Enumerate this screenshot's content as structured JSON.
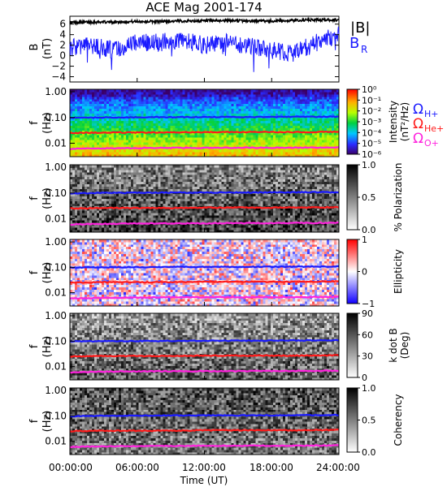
{
  "title": "ACE Mag 2001-174",
  "colors": {
    "axis": "#000000",
    "total_b": "#000000",
    "br": "#1a1aff",
    "he_plus": "#1a1aff",
    "he_plus_plus": "#ff1a1a",
    "o_plus": "#ff22dd"
  },
  "legend": {
    "total_b": "|B|",
    "br": "B",
    "br_sub": "R",
    "omega": "Ω",
    "he_plus": "H+",
    "he_plus_plus": "He+",
    "o_plus": "O+"
  },
  "xaxis": {
    "label": "Time (UT)",
    "ticks": [
      "00:00:00",
      "06:00:00",
      "12:00:00",
      "18:00:00",
      "24:00:00"
    ]
  },
  "panel_labels": {
    "b": "B",
    "b_unit": "(nT)",
    "f": "f",
    "f_unit": "(Hz)"
  },
  "chart_data": [
    {
      "type": "line",
      "panel": "magnetic-field",
      "ylabel": "B (nT)",
      "ylim": [
        -5,
        7.5
      ],
      "yticks": [
        "−4",
        "−2",
        "0",
        "2",
        "4",
        "6"
      ],
      "x_hours": [
        0,
        2,
        4,
        6,
        8,
        10,
        12,
        14,
        16,
        18,
        20,
        22,
        24
      ],
      "series": [
        {
          "name": "|B|",
          "values": [
            6.3,
            6.4,
            6.4,
            6.5,
            6.5,
            6.6,
            6.6,
            6.7,
            6.6,
            6.6,
            6.7,
            6.8,
            6.8
          ]
        },
        {
          "name": "B_R",
          "values": [
            1.5,
            2.0,
            1.0,
            2.5,
            2.5,
            3.0,
            2.0,
            2.5,
            2.0,
            1.0,
            0.5,
            2.5,
            4.0
          ]
        }
      ]
    },
    {
      "type": "heatmap",
      "panel": "power-spectrum",
      "ylabel": "f (Hz)",
      "yscale": "log",
      "yticks": [
        "1.00",
        "0.10",
        "0.01"
      ],
      "colorbar": {
        "label": "Intensity",
        "unit": "(nT²/Hz)",
        "ticks": [
          "10⁰",
          "10⁻¹",
          "10⁻²",
          "10⁻³",
          "10⁻⁴",
          "10⁻⁵",
          "10⁻⁶"
        ],
        "scale": "rainbow"
      }
    },
    {
      "type": "heatmap",
      "panel": "polarization",
      "ylabel": "f (Hz)",
      "yscale": "log",
      "yticks": [
        "1.00",
        "0.10",
        "0.01"
      ],
      "colorbar": {
        "label": "% Polarization",
        "ticks": [
          "1.0",
          "0.5",
          "0.0"
        ],
        "scale": "gray"
      }
    },
    {
      "type": "heatmap",
      "panel": "ellipticity",
      "ylabel": "f (Hz)",
      "yscale": "log",
      "yticks": [
        "1.00",
        "0.10",
        "0.01"
      ],
      "colorbar": {
        "label": "Ellipticity",
        "ticks": [
          "1",
          "0",
          "−1"
        ],
        "scale": "red-white-blue"
      }
    },
    {
      "type": "heatmap",
      "panel": "wave-normal-angle",
      "ylabel": "f (Hz)",
      "yscale": "log",
      "yticks": [
        "1.00",
        "0.10",
        "0.01"
      ],
      "colorbar": {
        "label": "k dot B",
        "unit": "(Deg)",
        "ticks": [
          "90",
          "60",
          "30",
          "0"
        ],
        "scale": "gray"
      }
    },
    {
      "type": "heatmap",
      "panel": "coherency",
      "ylabel": "f (Hz)",
      "yscale": "log",
      "yticks": [
        "1.00",
        "0.10",
        "0.01"
      ],
      "colorbar": {
        "label": "Coherency",
        "ticks": [
          "1.0",
          "0.5",
          "0.0"
        ],
        "scale": "gray"
      }
    }
  ],
  "gyrofrequency_lines": {
    "x_hours": [
      0,
      3,
      6,
      9,
      12,
      15,
      18,
      21,
      24
    ],
    "H+": [
      0.097,
      0.1,
      0.102,
      0.103,
      0.104,
      0.104,
      0.105,
      0.107,
      0.108
    ],
    "He+": [
      0.025,
      0.026,
      0.026,
      0.026,
      0.027,
      0.027,
      0.027,
      0.027,
      0.028
    ],
    "O+": [
      0.006,
      0.0063,
      0.0065,
      0.0066,
      0.0066,
      0.0067,
      0.0067,
      0.0068,
      0.0069
    ]
  }
}
